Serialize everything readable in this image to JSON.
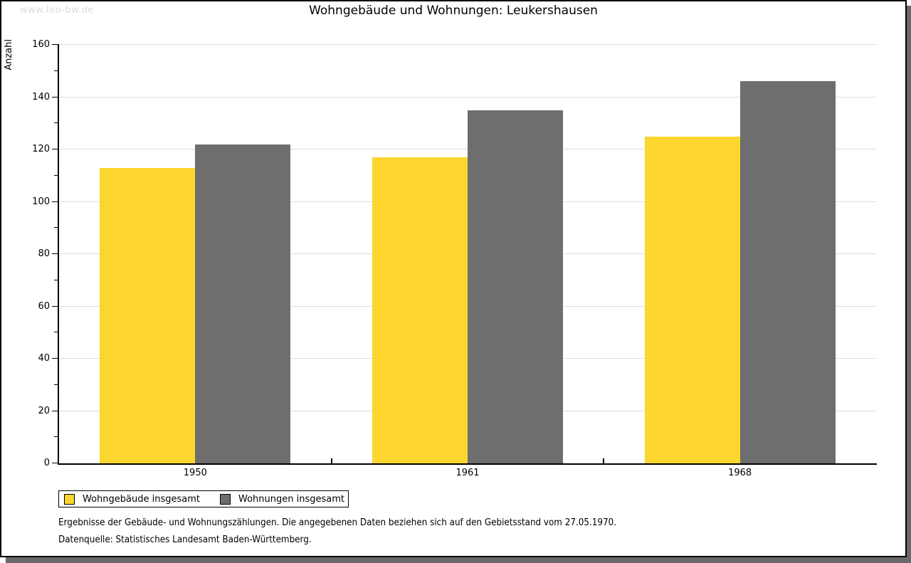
{
  "watermark": "www.leo-bw.de",
  "title": "Wohngebäude und Wohnungen: Leukershausen",
  "chart_data": {
    "type": "bar",
    "title": "Wohngebäude und Wohnungen: Leukershausen",
    "xlabel": "",
    "ylabel": "Anzahl",
    "ylim": [
      0,
      160
    ],
    "yticks": [
      0,
      20,
      40,
      60,
      80,
      100,
      120,
      140,
      160
    ],
    "minor_tick_step": 10,
    "grid": true,
    "legend_position": "bottom-left",
    "categories": [
      "1950",
      "1961",
      "1968"
    ],
    "series": [
      {
        "name": "Wohngebäude insgesamt",
        "color": "#FCD62F",
        "values": [
          113,
          117,
          125
        ]
      },
      {
        "name": "Wohnungen insgesamt",
        "color": "#6E6E6E",
        "values": [
          122,
          135,
          146
        ]
      }
    ],
    "gridline_color": "#DDDDDD"
  },
  "footer": {
    "line1": "Ergebnisse der Gebäude- und Wohnungszählungen. Die angegebenen Daten beziehen sich auf den Gebietsstand vom 27.05.1970.",
    "line2": "Datenquelle: Statistisches Landesamt Baden-Württemberg."
  },
  "colors": {
    "shadow": "#696969",
    "watermark": "#DCDCDC",
    "axis": "#000000"
  }
}
